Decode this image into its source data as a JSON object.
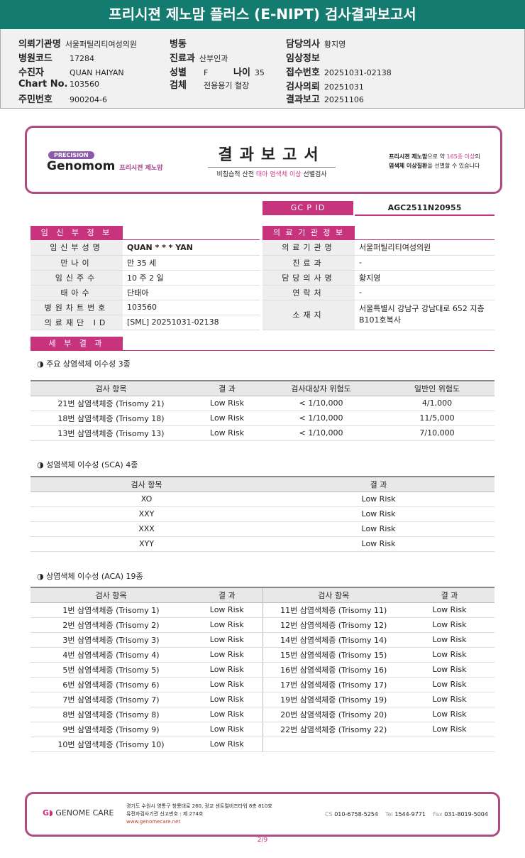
{
  "title": "프리시젼 제노맘 플러스 (E-NIPT) 검사결과보고서",
  "header": {
    "hospital_label": "의뢰기관명",
    "hospital": "서울퍼틸리티여성의원",
    "code_label": "병원코드",
    "code": "17284",
    "patient_label": "수진자",
    "patient": "QUAN HAIYAN",
    "chart_label": "Chart No.",
    "chart": "103560",
    "id_label": "주민번호",
    "id": "900204-6",
    "ward_label": "병동",
    "ward": "",
    "dept_label": "진료과",
    "dept": "산부인과",
    "sex_label": "성별",
    "sex": "F",
    "age_label": "나이",
    "age": "35",
    "specimen_label": "검체",
    "specimen": "전용용기 혈장",
    "doctor_label": "담당의사",
    "doctor": "황지영",
    "clinical_label": "임상정보",
    "clinical": "",
    "receipt_label": "접수번호",
    "receipt": "20251031-02138",
    "request_label": "검사의뢰",
    "request": "20251031",
    "report_label": "결과보고",
    "report": "20251106"
  },
  "banner": {
    "precision": "PRECISION",
    "brand": "Genomom",
    "brand_kr": "프리시젼 제노맘",
    "title": "결과보고서",
    "sub_a": "비침습적 산전 ",
    "sub_b": "태아 염색체 이상",
    "sub_c": " 선별검사",
    "right_1a": "프리시젼 제노맘",
    "right_1b": "으로 약 ",
    "right_1c": "165종 이상",
    "right_1d": "의",
    "right_2a": "염색체 이상질환",
    "right_2b": "을 선별할 수 있습니다"
  },
  "gcpid": {
    "label": "GC P ID",
    "value": "AGC2511N20955"
  },
  "pregnant": {
    "label": "임 신 부 정 보",
    "rows": [
      [
        "임신부성명",
        "QUAN * * * YAN"
      ],
      [
        "만나이",
        "만 35 세"
      ],
      [
        "임신주수",
        "10 주 2 일"
      ],
      [
        "태아수",
        "단태아"
      ],
      [
        "병원차트번호",
        "103560"
      ],
      [
        "의료재단 ID",
        "[SML] 20251031-02138"
      ]
    ]
  },
  "institution": {
    "label": "의 료 기 관 정 보",
    "rows": [
      [
        "의료기관명",
        "서울퍼틸리티여성의원"
      ],
      [
        "진료과",
        "-"
      ],
      [
        "담당의사명",
        "황지영"
      ],
      [
        "연락처",
        "-"
      ],
      [
        "소재지",
        "서울특별시 강남구 강남대로 652 지층 B101호복사"
      ]
    ]
  },
  "details_label": "세 부 결 과",
  "major": {
    "title": "◑ 주요 상염색체 이수성 3종",
    "headers": [
      "검사 항목",
      "결 과",
      "검사대상자 위험도",
      "일반인 위험도"
    ],
    "rows": [
      [
        "21번 삼염색체증 (Trisomy 21)",
        "Low Risk",
        "< 1/10,000",
        "4/1,000"
      ],
      [
        "18번 삼염색체증 (Trisomy 18)",
        "Low Risk",
        "< 1/10,000",
        "11/5,000"
      ],
      [
        "13번 삼염색체증 (Trisomy 13)",
        "Low Risk",
        "< 1/10,000",
        "7/10,000"
      ]
    ]
  },
  "sca": {
    "title": "◑ 성염색체 이수성 (SCA) 4종",
    "headers": [
      "검사 항목",
      "결 과"
    ],
    "rows": [
      [
        "XO",
        "Low Risk"
      ],
      [
        "XXY",
        "Low Risk"
      ],
      [
        "XXX",
        "Low Risk"
      ],
      [
        "XYY",
        "Low Risk"
      ]
    ]
  },
  "aca": {
    "title": "◑ 상염색체 이수성 (ACA) 19종",
    "headers": [
      "검사 항목",
      "결 과",
      "검사 항목",
      "결 과"
    ],
    "rows": [
      [
        "1번 삼염색체증 (Trisomy 1)",
        "Low Risk",
        "11번 삼염색체증 (Trisomy 11)",
        "Low Risk"
      ],
      [
        "2번 삼염색체증 (Trisomy 2)",
        "Low Risk",
        "12번 삼염색체증 (Trisomy 12)",
        "Low Risk"
      ],
      [
        "3번 삼염색체증 (Trisomy 3)",
        "Low Risk",
        "14번 삼염색체증 (Trisomy 14)",
        "Low Risk"
      ],
      [
        "4번 삼염색체증 (Trisomy 4)",
        "Low Risk",
        "15번 삼염색체증 (Trisomy 15)",
        "Low Risk"
      ],
      [
        "5번 삼염색체증 (Trisomy 5)",
        "Low Risk",
        "16번 삼염색체증 (Trisomy 16)",
        "Low Risk"
      ],
      [
        "6번 삼염색체증 (Trisomy 6)",
        "Low Risk",
        "17번 삼염색체증 (Trisomy 17)",
        "Low Risk"
      ],
      [
        "7번 삼염색체증 (Trisomy 7)",
        "Low Risk",
        "19번 삼염색체증 (Trisomy 19)",
        "Low Risk"
      ],
      [
        "8번 삼염색체증 (Trisomy 8)",
        "Low Risk",
        "20번 삼염색체증 (Trisomy 20)",
        "Low Risk"
      ],
      [
        "9번 삼염색체증 (Trisomy 9)",
        "Low Risk",
        "22번 삼염색체증 (Trisomy 22)",
        "Low Risk"
      ],
      [
        "10번 삼염색체증 (Trisomy 10)",
        "Low Risk",
        "",
        ""
      ]
    ]
  },
  "footer": {
    "brand": "GENOME CARE",
    "addr1": "경기도 수원시 영통구 창룡대로 260, 광교 센트럴비즈타워 8층 810호",
    "addr2": "유전자검사기관 신고번호 : 제 274호",
    "web": "www.genomecare.net",
    "cs_label": "CS",
    "cs": "010-6758-5254",
    "tel_label": "Tel",
    "tel": "1544-9771",
    "fax_label": "Fax",
    "fax": "031-8019-5004"
  },
  "page": "2/9"
}
